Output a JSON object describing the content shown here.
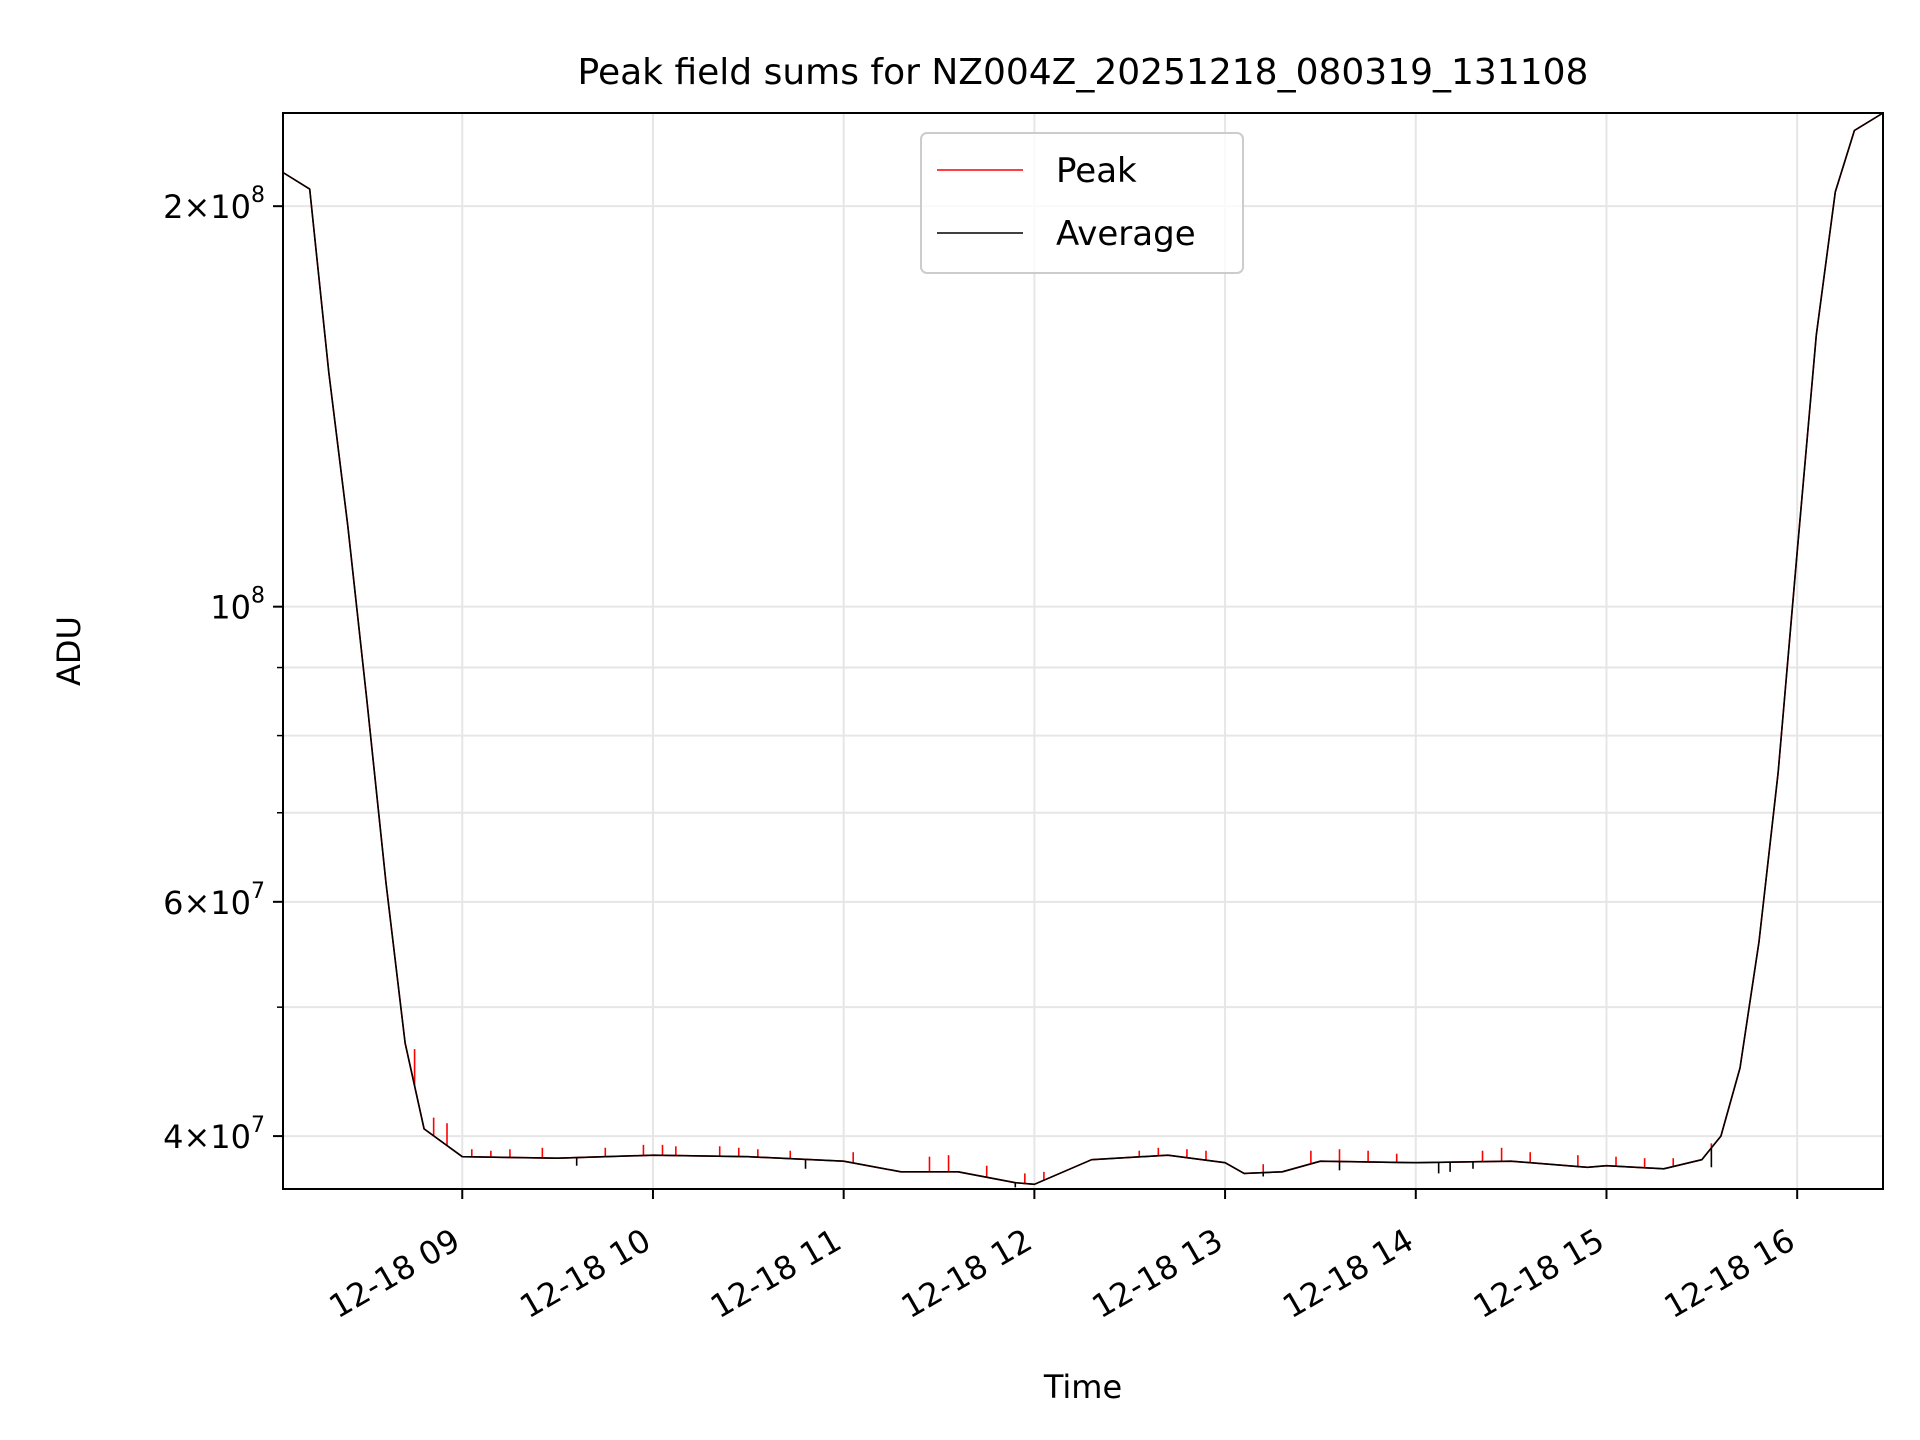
{
  "chart_data": {
    "type": "line",
    "title": "Peak field sums for NZ004Z_20251218_080319_131108",
    "xlabel": "Time",
    "ylabel": "ADU",
    "yscale": "log",
    "xlim": [
      8.06,
      16.45
    ],
    "ylim": [
      36500000,
      235000000
    ],
    "grid": true,
    "legend_position": "top-center",
    "x_ticks": [
      {
        "value": 9,
        "label": "12-18 09"
      },
      {
        "value": 10,
        "label": "12-18 10"
      },
      {
        "value": 11,
        "label": "12-18 11"
      },
      {
        "value": 12,
        "label": "12-18 12"
      },
      {
        "value": 13,
        "label": "12-18 13"
      },
      {
        "value": 14,
        "label": "12-18 14"
      },
      {
        "value": 15,
        "label": "12-18 15"
      },
      {
        "value": 16,
        "label": "12-18 16"
      }
    ],
    "y_major_ticks": [
      {
        "value": 40000000,
        "mantissa": "4",
        "exponent": "7"
      },
      {
        "value": 60000000,
        "mantissa": "6",
        "exponent": "7"
      },
      {
        "value": 100000000,
        "mantissa": "",
        "exponent": "8"
      },
      {
        "value": 200000000,
        "mantissa": "2",
        "exponent": "8"
      }
    ],
    "y_minor_ticks": [
      50000000,
      70000000,
      80000000,
      90000000
    ],
    "series": [
      {
        "name": "Peak",
        "color": "#ff0000",
        "x": [
          8.06,
          8.2,
          8.3,
          8.4,
          8.5,
          8.6,
          8.7,
          8.8,
          9.0,
          9.5,
          10.0,
          10.5,
          11.0,
          11.3,
          11.6,
          11.9,
          12.0,
          12.3,
          12.7,
          13.0,
          13.1,
          13.3,
          13.5,
          14.0,
          14.5,
          14.9,
          15.0,
          15.3,
          15.5,
          15.6,
          15.7,
          15.8,
          15.9,
          16.0,
          16.1,
          16.2,
          16.3,
          16.45
        ],
        "values": [
          212000000,
          206000000,
          150000000,
          115000000,
          85000000,
          62000000,
          47000000,
          40500000,
          38600000,
          38500000,
          38700000,
          38600000,
          38300000,
          37600000,
          37600000,
          36900000,
          36800000,
          38400000,
          38700000,
          38200000,
          37500000,
          37600000,
          38300000,
          38200000,
          38300000,
          37900000,
          38000000,
          37800000,
          38400000,
          40000000,
          45000000,
          56000000,
          75000000,
          110000000,
          160000000,
          205000000,
          228000000,
          235000000
        ]
      },
      {
        "name": "Average",
        "color": "#000000",
        "x": [
          8.06,
          8.2,
          8.3,
          8.4,
          8.5,
          8.6,
          8.7,
          8.8,
          9.0,
          9.5,
          10.0,
          10.5,
          11.0,
          11.3,
          11.6,
          11.9,
          12.0,
          12.3,
          12.7,
          13.0,
          13.1,
          13.3,
          13.5,
          14.0,
          14.5,
          14.9,
          15.0,
          15.3,
          15.5,
          15.6,
          15.7,
          15.8,
          15.9,
          16.0,
          16.1,
          16.2,
          16.3,
          16.45
        ],
        "values": [
          212000000,
          206000000,
          150000000,
          115000000,
          85000000,
          62000000,
          47000000,
          40500000,
          38600000,
          38500000,
          38700000,
          38600000,
          38300000,
          37600000,
          37600000,
          36900000,
          36800000,
          38400000,
          38700000,
          38200000,
          37500000,
          37600000,
          38300000,
          38200000,
          38300000,
          37900000,
          38000000,
          37800000,
          38400000,
          40000000,
          45000000,
          56000000,
          75000000,
          110000000,
          160000000,
          205000000,
          228000000,
          235000000
        ]
      }
    ],
    "peak_spikes": [
      {
        "x": 8.75,
        "value": 46500000
      },
      {
        "x": 8.85,
        "value": 41300000
      },
      {
        "x": 8.92,
        "value": 40900000
      },
      {
        "x": 9.05,
        "value": 39100000
      },
      {
        "x": 9.15,
        "value": 39000000
      },
      {
        "x": 9.25,
        "value": 39100000
      },
      {
        "x": 9.42,
        "value": 39200000
      },
      {
        "x": 9.75,
        "value": 39200000
      },
      {
        "x": 9.95,
        "value": 39400000
      },
      {
        "x": 10.05,
        "value": 39400000
      },
      {
        "x": 10.12,
        "value": 39300000
      },
      {
        "x": 10.35,
        "value": 39300000
      },
      {
        "x": 10.45,
        "value": 39200000
      },
      {
        "x": 10.55,
        "value": 39100000
      },
      {
        "x": 10.72,
        "value": 39000000
      },
      {
        "x": 11.05,
        "value": 38900000
      },
      {
        "x": 11.45,
        "value": 38600000
      },
      {
        "x": 11.55,
        "value": 38700000
      },
      {
        "x": 11.75,
        "value": 38000000
      },
      {
        "x": 11.95,
        "value": 37500000
      },
      {
        "x": 12.05,
        "value": 37600000
      },
      {
        "x": 12.55,
        "value": 39000000
      },
      {
        "x": 12.65,
        "value": 39200000
      },
      {
        "x": 12.8,
        "value": 39100000
      },
      {
        "x": 12.9,
        "value": 39000000
      },
      {
        "x": 13.2,
        "value": 38100000
      },
      {
        "x": 13.45,
        "value": 39000000
      },
      {
        "x": 13.6,
        "value": 39100000
      },
      {
        "x": 13.75,
        "value": 39000000
      },
      {
        "x": 13.9,
        "value": 38800000
      },
      {
        "x": 14.35,
        "value": 39000000
      },
      {
        "x": 14.45,
        "value": 39200000
      },
      {
        "x": 14.6,
        "value": 38900000
      },
      {
        "x": 14.85,
        "value": 38700000
      },
      {
        "x": 15.05,
        "value": 38600000
      },
      {
        "x": 15.2,
        "value": 38500000
      },
      {
        "x": 15.35,
        "value": 38500000
      },
      {
        "x": 15.55,
        "value": 39500000
      }
    ],
    "average_dips": [
      {
        "x": 9.6,
        "value": 38000000
      },
      {
        "x": 10.8,
        "value": 37800000
      },
      {
        "x": 11.9,
        "value": 36600000
      },
      {
        "x": 13.2,
        "value": 37300000
      },
      {
        "x": 13.6,
        "value": 37700000
      },
      {
        "x": 14.12,
        "value": 37500000
      },
      {
        "x": 14.18,
        "value": 37600000
      },
      {
        "x": 14.3,
        "value": 37800000
      },
      {
        "x": 15.55,
        "value": 37900000
      }
    ]
  }
}
